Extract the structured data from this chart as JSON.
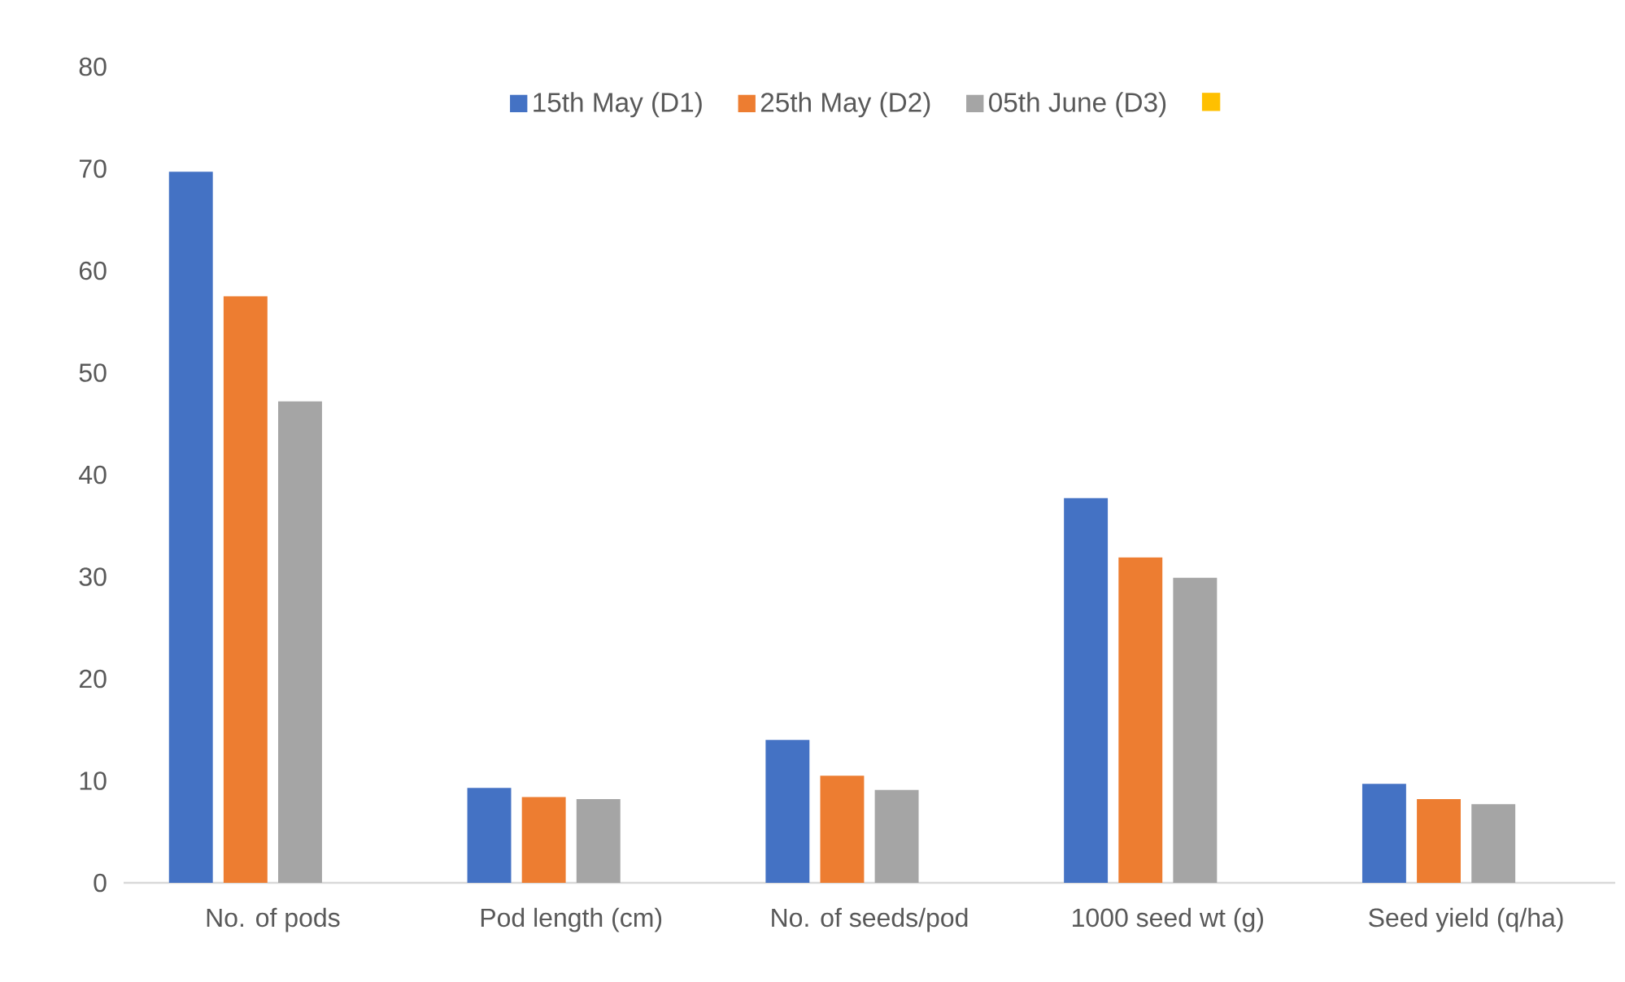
{
  "chart_data": {
    "type": "bar",
    "categories": [
      "No. of pods",
      "Pod length (cm)",
      "No. of seeds/pod",
      "1000 seed wt (g)",
      "Seed yield  (q/ha)"
    ],
    "series": [
      {
        "name": "15th May (D1)",
        "color": "#4472c4",
        "values": [
          69.7,
          9.3,
          14.0,
          37.7,
          9.7
        ]
      },
      {
        "name": "25th May (D2)",
        "color": "#ed7d31",
        "values": [
          57.5,
          8.4,
          10.5,
          31.9,
          8.2
        ]
      },
      {
        "name": "05th June (D3)",
        "color": "#a5a5a5",
        "values": [
          47.2,
          8.2,
          9.1,
          29.9,
          7.7
        ]
      },
      {
        "color": "#ffc000",
        "values": [
          null,
          null,
          null,
          null,
          null
        ]
      }
    ],
    "ylim": [
      0,
      80
    ],
    "yticks": [
      0,
      10,
      20,
      30,
      40,
      50,
      60,
      70,
      80
    ],
    "legend": "top",
    "grid": false
  }
}
